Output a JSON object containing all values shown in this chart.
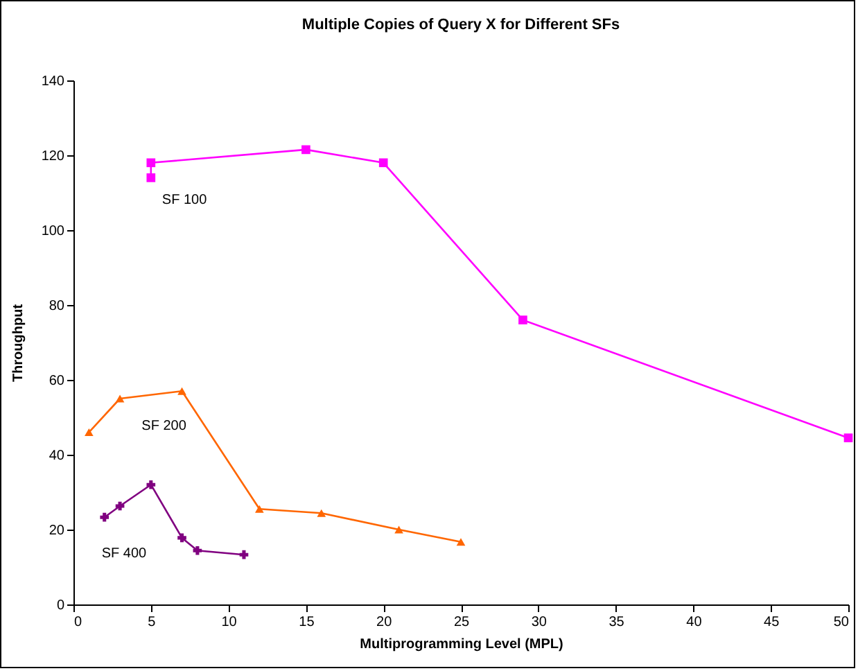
{
  "chart_data": {
    "type": "line",
    "title": "Multiple Copies of Query X for Different SFs",
    "xlabel": "Multiprogramming Level (MPL)",
    "ylabel": "Throughput",
    "xlim": [
      0,
      50
    ],
    "xticks": [
      0,
      5,
      10,
      15,
      20,
      25,
      30,
      35,
      40,
      45,
      50
    ],
    "ylim": [
      0,
      140
    ],
    "yticks": [
      0,
      20,
      40,
      60,
      80,
      100,
      120,
      140
    ],
    "grid": false,
    "legend": false,
    "series": [
      {
        "name": "SF 100",
        "color": "#ff00ff",
        "marker": "square",
        "x": [
          5,
          5,
          15,
          20,
          29,
          50
        ],
        "values": [
          114,
          118,
          121.5,
          118,
          76,
          44.5
        ]
      },
      {
        "name": "SF 200",
        "color": "#ff6600",
        "marker": "triangle",
        "x": [
          1,
          3,
          7,
          12,
          16,
          21,
          25
        ],
        "values": [
          46,
          55,
          57,
          25.5,
          24.4,
          20,
          16.7
        ]
      },
      {
        "name": "SF 400",
        "color": "#800080",
        "marker": "cross",
        "x": [
          2,
          3,
          5,
          7,
          8,
          11
        ],
        "values": [
          23.3,
          26.3,
          32,
          17.8,
          14.4,
          13.3
        ]
      }
    ]
  }
}
